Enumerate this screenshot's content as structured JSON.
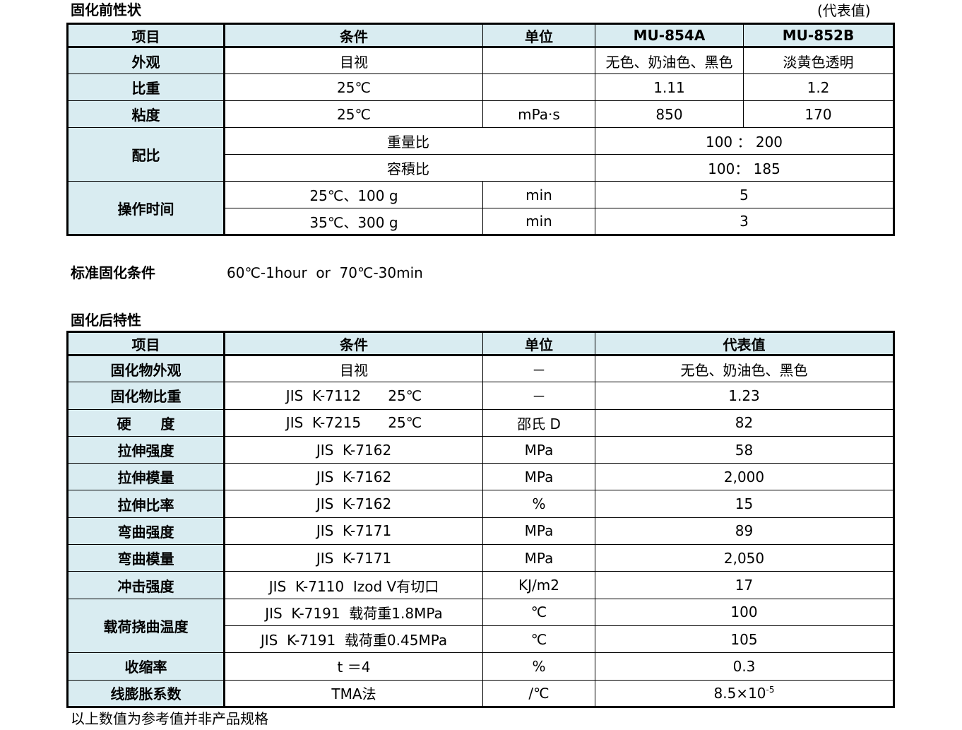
{
  "before": {
    "title": "固化前性状",
    "representative_note": "(代表值)",
    "headers": [
      "项目",
      "条件",
      "单位",
      "MU-854A",
      "MU-852B"
    ],
    "appearance": {
      "label": "外观",
      "cond": "目视",
      "unit": "",
      "a": "无色、奶油色、黑色",
      "b": "淡黄色透明"
    },
    "gravity": {
      "label": "比重",
      "cond": "25℃",
      "unit": "",
      "a": "1.11",
      "b": "1.2"
    },
    "viscosity": {
      "label": "粘度",
      "cond": "25℃",
      "unit": "mPa·s",
      "a": "850",
      "b": "170"
    },
    "mix": {
      "label": "配比",
      "weight_label": "重量比",
      "weight_value": "100 ： 200",
      "volume_label": "容積比",
      "volume_value": "100： 185"
    },
    "worktime": {
      "label": "操作时间",
      "r1_cond": "25℃、100 g",
      "r1_unit": "min",
      "r1_value": "5",
      "r2_cond": "35℃、300 g",
      "r2_unit": "min",
      "r2_value": "3"
    }
  },
  "cure": {
    "label": "标准固化条件",
    "value": "60℃-1hour  or  70℃-30min"
  },
  "after": {
    "title": "固化后特性",
    "headers": [
      "项目",
      "条件",
      "单位",
      "代表值"
    ],
    "rows": [
      {
        "label": "固化物外观",
        "cond": "目视",
        "unit": "－",
        "value": "无色、奶油色、黑色"
      },
      {
        "label": "固化物比重",
        "cond": "JIS  K-7112      25℃",
        "unit": "－",
        "value": "1.23"
      },
      {
        "label": "硬      度",
        "cond": "JIS  K-7215      25℃",
        "unit": "邵氏 D",
        "value": "82"
      },
      {
        "label": "拉伸强度",
        "cond": "JIS  K-7162",
        "unit": "MPa",
        "value": "58"
      },
      {
        "label": "拉伸模量",
        "cond": "JIS  K-7162",
        "unit": "MPa",
        "value": "2,000"
      },
      {
        "label": "拉伸比率",
        "cond": "JIS  K-7162",
        "unit": "%",
        "value": "15"
      },
      {
        "label": "弯曲强度",
        "cond": "JIS  K-7171",
        "unit": "MPa",
        "value": "89"
      },
      {
        "label": "弯曲模量",
        "cond": "JIS  K-7171",
        "unit": "MPa",
        "value": "2,050"
      },
      {
        "label": "冲击强度",
        "cond": "JIS  K-7110  Izod V有切口",
        "unit": "KJ/m2",
        "value": "17"
      }
    ],
    "hdt": {
      "label": "载荷挠曲温度",
      "r1_cond": "JIS  K-7191  载荷重1.8MPa",
      "r1_unit": "℃",
      "r1_value": "100",
      "r2_cond": "JIS  K-7191  载荷重0.45MPa",
      "r2_unit": "℃",
      "r2_value": "105"
    },
    "shrink": {
      "label": "收缩率",
      "cond": "t ＝4",
      "unit": "%",
      "value": "0.3"
    },
    "cte": {
      "label": "线膨胀系数",
      "cond": "TMA法",
      "unit": "/℃",
      "value_base": "8.5×10",
      "value_exp": "-5"
    }
  },
  "footnote": "以上数值为参考值并非产品规格"
}
